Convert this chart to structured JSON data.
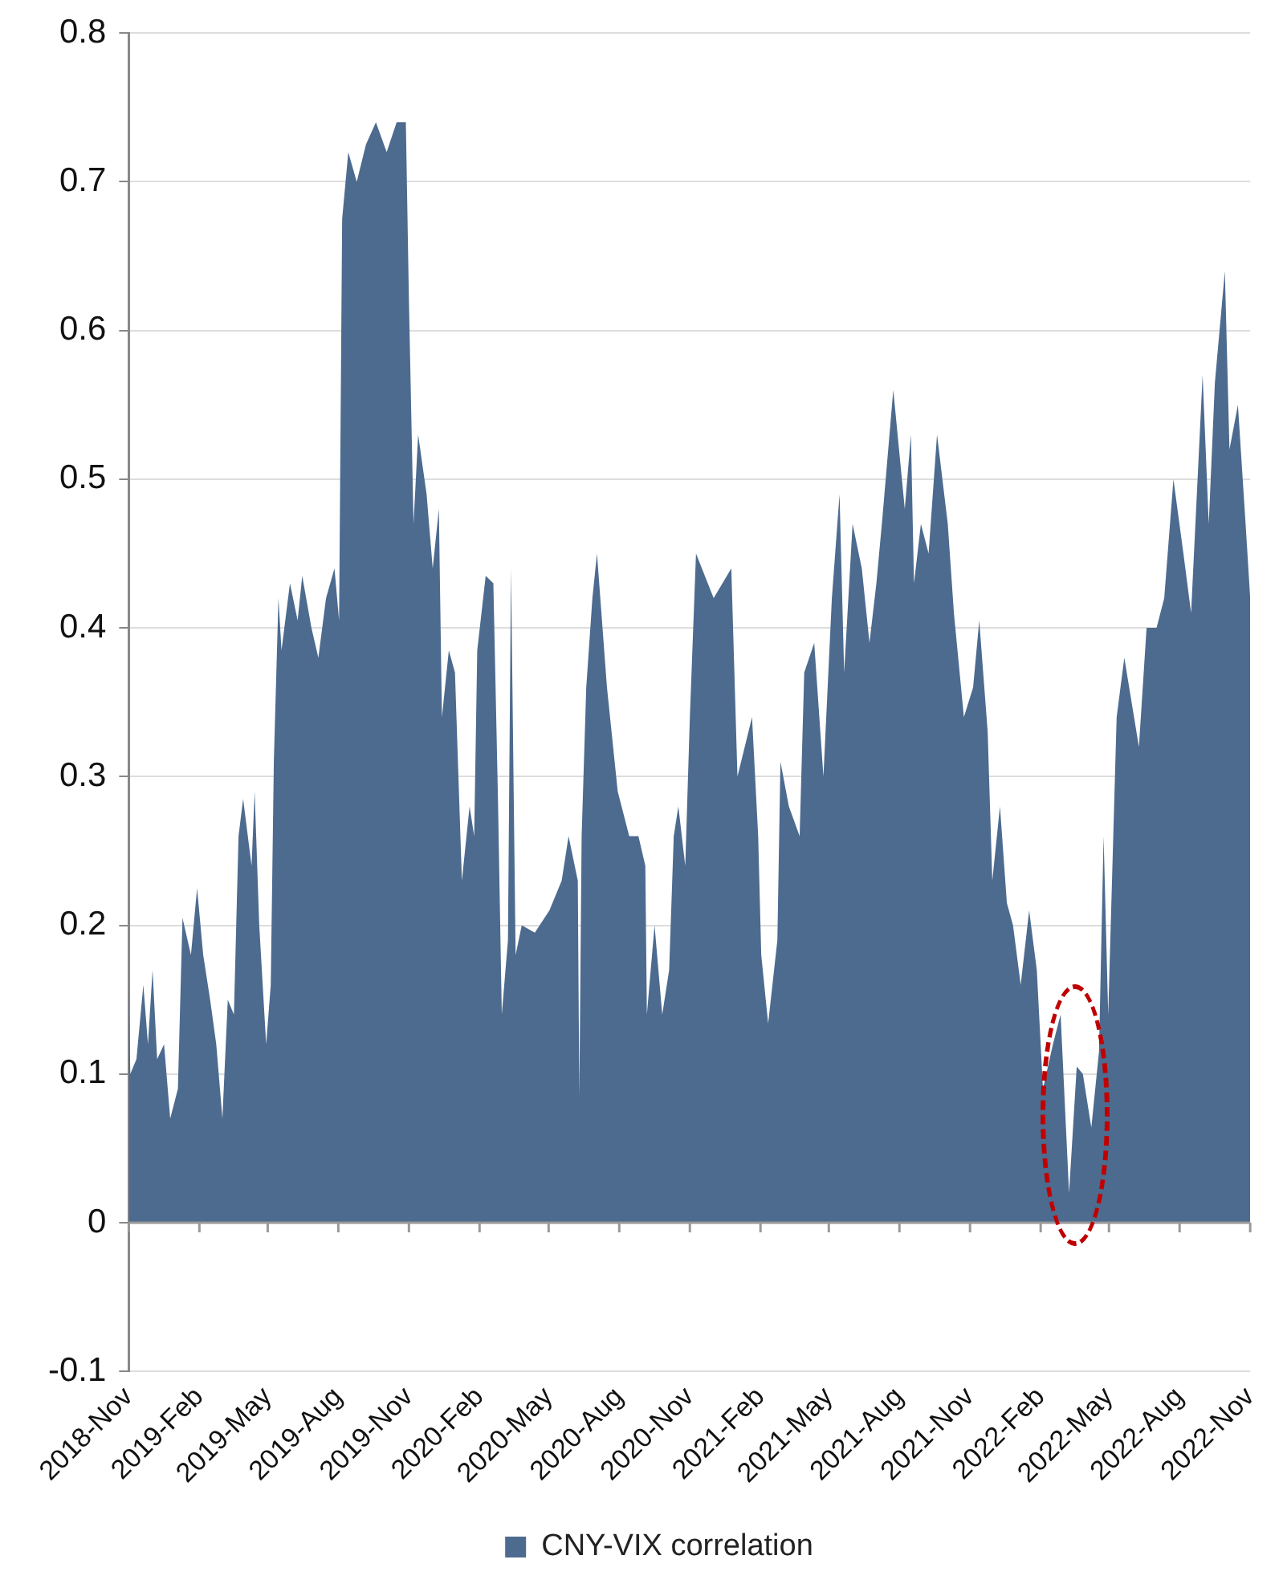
{
  "chart_data": {
    "type": "area",
    "legend": "bottom",
    "grid": "y",
    "ylim": [
      -0.1,
      0.8
    ],
    "yticks": [
      -0.1,
      0,
      0.1,
      0.2,
      0.3,
      0.4,
      0.5,
      0.6,
      0.7,
      0.8
    ],
    "xlim": [
      "2018-11",
      "2022-11"
    ],
    "xticks": [
      {
        "value": "2018-11",
        "label": "2018-Nov"
      },
      {
        "value": "2019-02",
        "label": "2019-Feb"
      },
      {
        "value": "2019-05",
        "label": "2019-May"
      },
      {
        "value": "2019-08",
        "label": "2019-Aug"
      },
      {
        "value": "2019-11",
        "label": "2019-Nov"
      },
      {
        "value": "2020-02",
        "label": "2020-Feb"
      },
      {
        "value": "2020-05",
        "label": "2020-May"
      },
      {
        "value": "2020-08",
        "label": "2020-Aug"
      },
      {
        "value": "2020-11",
        "label": "2020-Nov"
      },
      {
        "value": "2021-02",
        "label": "2021-Feb"
      },
      {
        "value": "2021-05",
        "label": "2021-May"
      },
      {
        "value": "2021-08",
        "label": "2021-Aug"
      },
      {
        "value": "2021-11",
        "label": "2021-Nov"
      },
      {
        "value": "2022-02",
        "label": "2022-Feb"
      },
      {
        "value": "2022-05",
        "label": "2022-May"
      },
      {
        "value": "2022-08",
        "label": "2022-Aug"
      },
      {
        "value": "2022-11",
        "label": "2022-Nov"
      }
    ],
    "x": [
      "2018-11-01",
      "2018-11-03",
      "2018-11-11",
      "2018-11-20",
      "2018-11-26",
      "2018-12-02",
      "2018-12-08",
      "2018-12-17",
      "2018-12-25",
      "2019-01-04",
      "2019-01-10",
      "2019-01-21",
      "2019-01-29",
      "2019-02-06",
      "2019-02-15",
      "2019-02-23",
      "2019-03-03",
      "2019-03-10",
      "2019-03-18",
      "2019-03-24",
      "2019-03-30",
      "2019-04-10",
      "2019-04-14",
      "2019-04-20",
      "2019-04-29",
      "2019-05-05",
      "2019-05-09",
      "2019-05-15",
      "2019-05-19",
      "2019-05-30",
      "2019-06-09",
      "2019-06-15",
      "2019-06-27",
      "2019-07-06",
      "2019-07-16",
      "2019-07-27",
      "2019-08-02",
      "2019-08-06",
      "2019-08-14",
      "2019-08-25",
      "2019-09-06",
      "2019-09-19",
      "2019-10-03",
      "2019-10-16",
      "2019-10-28",
      "2019-11-01",
      "2019-11-07",
      "2019-11-13",
      "2019-11-24",
      "2019-12-02",
      "2019-12-10",
      "2019-12-14",
      "2019-12-23",
      "2019-12-31",
      "2020-01-09",
      "2020-01-19",
      "2020-01-25",
      "2020-01-29",
      "2020-02-09",
      "2020-02-19",
      "2020-02-25",
      "2020-03-01",
      "2020-03-09",
      "2020-03-13",
      "2020-03-19",
      "2020-03-27",
      "2020-04-13",
      "2020-05-02",
      "2020-05-18",
      "2020-05-27",
      "2020-06-08",
      "2020-06-10",
      "2020-06-13",
      "2020-06-19",
      "2020-06-27",
      "2020-07-03",
      "2020-07-16",
      "2020-07-30",
      "2020-08-14",
      "2020-08-26",
      "2020-09-04",
      "2020-09-06",
      "2020-09-16",
      "2020-09-26",
      "2020-10-05",
      "2020-10-11",
      "2020-10-17",
      "2020-10-26",
      "2020-11-01",
      "2020-11-09",
      "2020-12-02",
      "2020-12-25",
      "2021-01-02",
      "2021-01-21",
      "2021-01-29",
      "2021-02-02",
      "2021-02-11",
      "2021-02-23",
      "2021-02-27",
      "2021-03-10",
      "2021-03-24",
      "2021-03-30",
      "2021-04-12",
      "2021-04-24",
      "2021-05-05",
      "2021-05-15",
      "2021-05-21",
      "2021-06-01",
      "2021-06-13",
      "2021-06-23",
      "2021-07-02",
      "2021-07-10",
      "2021-07-24",
      "2021-08-08",
      "2021-08-16",
      "2021-08-20",
      "2021-08-29",
      "2021-09-08",
      "2021-09-19",
      "2021-10-03",
      "2021-10-11",
      "2021-10-24",
      "2021-11-05",
      "2021-11-13",
      "2021-11-24",
      "2021-11-30",
      "2021-12-10",
      "2021-12-19",
      "2021-12-27",
      "2022-01-06",
      "2022-01-17",
      "2022-01-27",
      "2022-02-04",
      "2022-02-17",
      "2022-02-27",
      "2022-03-10",
      "2022-03-20",
      "2022-03-28",
      "2022-04-08",
      "2022-04-18",
      "2022-04-24",
      "2022-04-30",
      "2022-05-11",
      "2022-05-21",
      "2022-06-09",
      "2022-06-19",
      "2022-07-02",
      "2022-07-12",
      "2022-07-24",
      "2022-08-06",
      "2022-08-16",
      "2022-08-31",
      "2022-09-08",
      "2022-09-16",
      "2022-09-29",
      "2022-10-05",
      "2022-10-16",
      "2022-10-26",
      "2022-11-01"
    ],
    "series": [
      {
        "name": "CNY-VIX correlation",
        "color": "#4d6b8f",
        "values": [
          0.16,
          0.1,
          0.11,
          0.16,
          0.12,
          0.17,
          0.11,
          0.12,
          0.07,
          0.09,
          0.205,
          0.18,
          0.225,
          0.18,
          0.15,
          0.12,
          0.07,
          0.15,
          0.14,
          0.26,
          0.285,
          0.24,
          0.29,
          0.2,
          0.12,
          0.16,
          0.31,
          0.42,
          0.385,
          0.43,
          0.405,
          0.435,
          0.4,
          0.38,
          0.42,
          0.44,
          0.405,
          0.675,
          0.72,
          0.7,
          0.725,
          0.74,
          0.72,
          0.74,
          0.74,
          0.62,
          0.47,
          0.53,
          0.49,
          0.44,
          0.48,
          0.34,
          0.385,
          0.37,
          0.23,
          0.28,
          0.26,
          0.385,
          0.435,
          0.43,
          0.285,
          0.14,
          0.19,
          0.44,
          0.18,
          0.2,
          0.195,
          0.21,
          0.23,
          0.26,
          0.23,
          0.085,
          0.26,
          0.36,
          0.42,
          0.45,
          0.36,
          0.29,
          0.26,
          0.26,
          0.24,
          0.14,
          0.2,
          0.14,
          0.17,
          0.26,
          0.28,
          0.24,
          0.34,
          0.45,
          0.42,
          0.44,
          0.3,
          0.34,
          0.26,
          0.18,
          0.134,
          0.19,
          0.31,
          0.28,
          0.26,
          0.37,
          0.39,
          0.3,
          0.42,
          0.49,
          0.37,
          0.47,
          0.44,
          0.39,
          0.43,
          0.475,
          0.56,
          0.48,
          0.53,
          0.43,
          0.47,
          0.45,
          0.53,
          0.47,
          0.41,
          0.34,
          0.36,
          0.405,
          0.33,
          0.23,
          0.28,
          0.215,
          0.2,
          0.16,
          0.21,
          0.17,
          0.09,
          0.12,
          0.14,
          0.02,
          0.105,
          0.1,
          0.064,
          0.115,
          0.26,
          0.14,
          0.34,
          0.38,
          0.32,
          0.4,
          0.4,
          0.42,
          0.5,
          0.45,
          0.41,
          0.57,
          0.47,
          0.565,
          0.64,
          0.52,
          0.55,
          0.47,
          0.42
        ]
      }
    ]
  }
}
